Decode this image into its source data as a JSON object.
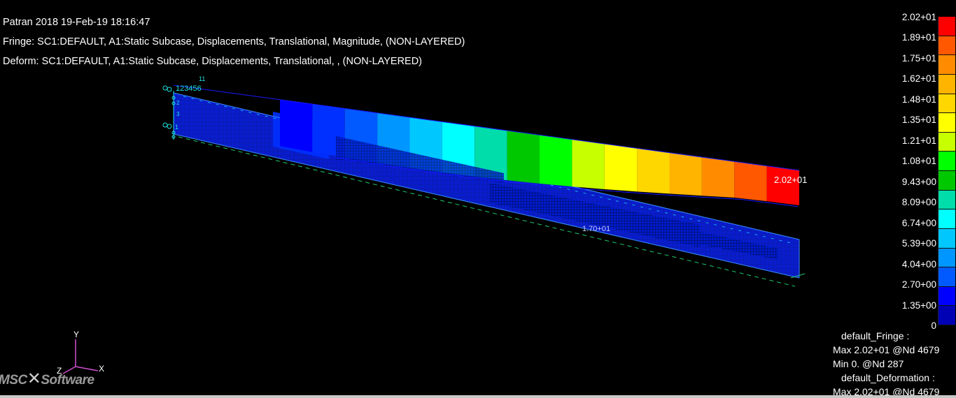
{
  "header": {
    "title": "Patran 2018 19-Feb-19 18:16:47",
    "fringe": "Fringe: SC1:DEFAULT, A1:Static Subcase, Displacements, Translational, Magnitude, (NON-LAYERED)",
    "deform": "Deform: SC1:DEFAULT, A1:Static Subcase, Displacements, Translational, , (NON-LAYERED)"
  },
  "model": {
    "max_marker": "2.02+01",
    "inner_label": "1.70+01",
    "constraint_tags": [
      "123456",
      "11",
      "2",
      "3",
      "1"
    ]
  },
  "legend": {
    "labels": [
      "2.02+01",
      "1.89+01",
      "1.75+01",
      "1.62+01",
      "1.48+01",
      "1.35+01",
      "1.21+01",
      "1.08+01",
      "9.43+00",
      "8.09+00",
      "6.74+00",
      "5.39+00",
      "4.04+00",
      "2.70+00",
      "1.35+00",
      "0"
    ],
    "colors": [
      "#ff0000",
      "#ff5800",
      "#ff8c00",
      "#ffb400",
      "#ffd700",
      "#ffff00",
      "#c8ff00",
      "#00ff00",
      "#00c800",
      "#00dcaa",
      "#00ffff",
      "#00c8ff",
      "#0096ff",
      "#005aff",
      "#0000ff",
      "#0000b4"
    ]
  },
  "summary": {
    "fringe_name": "default_Fringe :",
    "fringe_max": "Max 2.02+01 @Nd 4679",
    "fringe_min": "Min  0. @Nd 287",
    "deform_name": "default_Deformation :",
    "deform_max": "Max 2.02+01 @Nd 4679"
  },
  "triad": {
    "y": "Y",
    "z": "Z",
    "x": "X"
  },
  "logo": {
    "left": "MSC",
    "right": "Software"
  }
}
